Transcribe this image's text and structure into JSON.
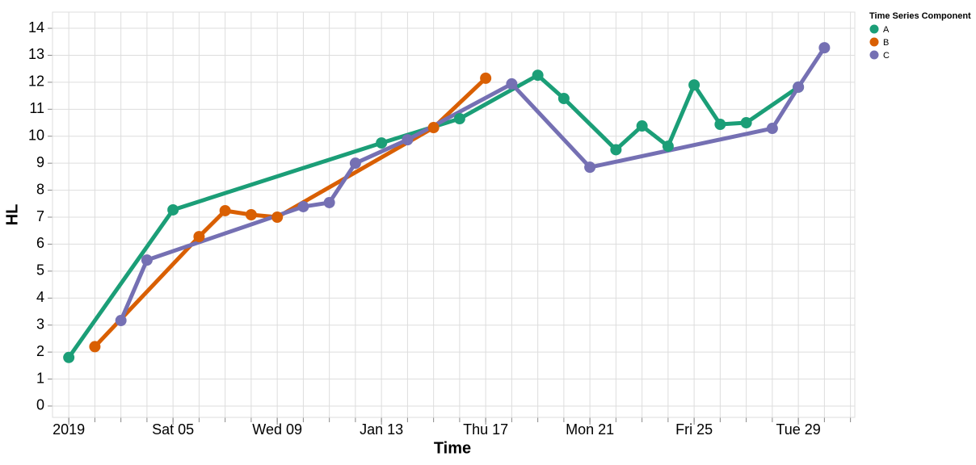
{
  "chart_data": {
    "type": "line",
    "x_label": "Time",
    "y_label": "HL",
    "legend_title": "Time Series Component",
    "legend": "top-right",
    "grid": true,
    "xlim": [
      "2018-12-31T09:00",
      "2019-01-31T04:00"
    ],
    "xticks": [
      {
        "value": "2019-01-01",
        "label": "2019"
      },
      {
        "value": "2019-01-05",
        "label": "Sat 05"
      },
      {
        "value": "2019-01-09",
        "label": "Wed 09"
      },
      {
        "value": "2019-01-13",
        "label": "Jan 13"
      },
      {
        "value": "2019-01-17",
        "label": "Thu 17"
      },
      {
        "value": "2019-01-21",
        "label": "Mon 21"
      },
      {
        "value": "2019-01-25",
        "label": "Fri 25"
      },
      {
        "value": "2019-01-29",
        "label": "Tue 29"
      }
    ],
    "xminorticks": [
      "2019-01-01",
      "2019-01-02",
      "2019-01-03",
      "2019-01-04",
      "2019-01-05",
      "2019-01-06",
      "2019-01-07",
      "2019-01-08",
      "2019-01-09",
      "2019-01-10",
      "2019-01-11",
      "2019-01-12",
      "2019-01-13",
      "2019-01-14",
      "2019-01-15",
      "2019-01-16",
      "2019-01-17",
      "2019-01-18",
      "2019-01-19",
      "2019-01-20",
      "2019-01-21",
      "2019-01-22",
      "2019-01-23",
      "2019-01-24",
      "2019-01-25",
      "2019-01-26",
      "2019-01-27",
      "2019-01-28",
      "2019-01-29",
      "2019-01-30",
      "2019-01-31"
    ],
    "ylim": [
      -0.42,
      14.6
    ],
    "yticks": [
      0,
      1,
      2,
      3,
      4,
      5,
      6,
      7,
      8,
      9,
      10,
      11,
      12,
      13,
      14
    ],
    "series": [
      {
        "name": "A",
        "color": "#1b9e77",
        "x": [
          "2019-01-01",
          "2019-01-05",
          "2019-01-13",
          "2019-01-16",
          "2019-01-19",
          "2019-01-20",
          "2019-01-22",
          "2019-01-23",
          "2019-01-24",
          "2019-01-25",
          "2019-01-26",
          "2019-01-27",
          "2019-01-29"
        ],
        "values": [
          1.8,
          7.27,
          9.75,
          10.65,
          12.26,
          11.4,
          9.5,
          10.38,
          9.63,
          11.9,
          10.44,
          10.5,
          11.82
        ]
      },
      {
        "name": "B",
        "color": "#d95f02",
        "x": [
          "2019-01-02",
          "2019-01-06",
          "2019-01-07",
          "2019-01-08",
          "2019-01-09",
          "2019-01-15",
          "2019-01-17"
        ],
        "values": [
          2.2,
          6.28,
          7.24,
          7.09,
          7.0,
          10.32,
          12.15
        ]
      },
      {
        "name": "C",
        "color": "#7570b3",
        "x": [
          "2019-01-03",
          "2019-01-04",
          "2019-01-10",
          "2019-01-11",
          "2019-01-12",
          "2019-01-14",
          "2019-01-18",
          "2019-01-21",
          "2019-01-28",
          "2019-01-29",
          "2019-01-30"
        ],
        "values": [
          3.17,
          5.41,
          7.39,
          7.54,
          9.0,
          9.87,
          11.94,
          8.85,
          10.29,
          11.82,
          13.28
        ]
      }
    ]
  }
}
